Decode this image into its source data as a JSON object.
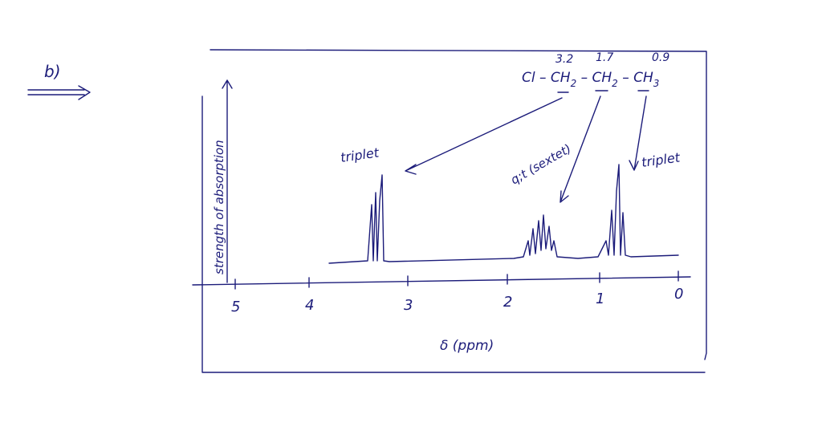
{
  "label": "b)",
  "shifts": [
    "3.2",
    "1.7",
    "0.9"
  ],
  "formula": [
    "Cl – CH",
    "2",
    " – CH",
    "2",
    " – CH",
    "3"
  ],
  "peak_labels": [
    "triplet",
    "q;t (sextet)",
    "triplet"
  ],
  "y_axis_label": "strength of absorption",
  "x_axis_label": "δ (ppm)",
  "x_ticks": [
    "5",
    "4",
    "3",
    "2",
    "1",
    "0"
  ]
}
